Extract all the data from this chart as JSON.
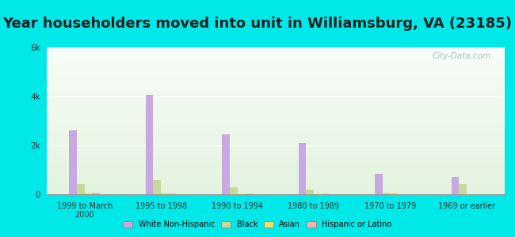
{
  "title": "Year householders moved into unit in Williamsburg, VA (23185)",
  "categories": [
    "1999 to March\n2000",
    "1995 to 1998",
    "1990 to 1994",
    "1980 to 1989",
    "1970 to 1979",
    "1969 or earlier"
  ],
  "series": {
    "White Non-Hispanic": [
      2600,
      4050,
      2450,
      2100,
      850,
      700
    ],
    "Black": [
      430,
      570,
      300,
      200,
      70,
      430
    ],
    "Asian": [
      70,
      70,
      30,
      30,
      50,
      10
    ],
    "Hispanic or Latino": [
      80,
      30,
      20,
      20,
      10,
      10
    ]
  },
  "colors": {
    "White Non-Hispanic": "#c8a8e0",
    "Black": "#c8d898",
    "Asian": "#f0e060",
    "Hispanic or Latino": "#f8b0a8"
  },
  "ylim": [
    0,
    6000
  ],
  "yticks": [
    0,
    2000,
    4000,
    6000
  ],
  "ytick_labels": [
    "0",
    "2k",
    "4k",
    "6k"
  ],
  "background_color": "#00e8e8",
  "title_fontsize": 13,
  "title_color": "#202020",
  "watermark": "City-Data.com",
  "bar_width": 0.1,
  "offsets": [
    -1.5,
    -0.5,
    0.5,
    1.5
  ]
}
